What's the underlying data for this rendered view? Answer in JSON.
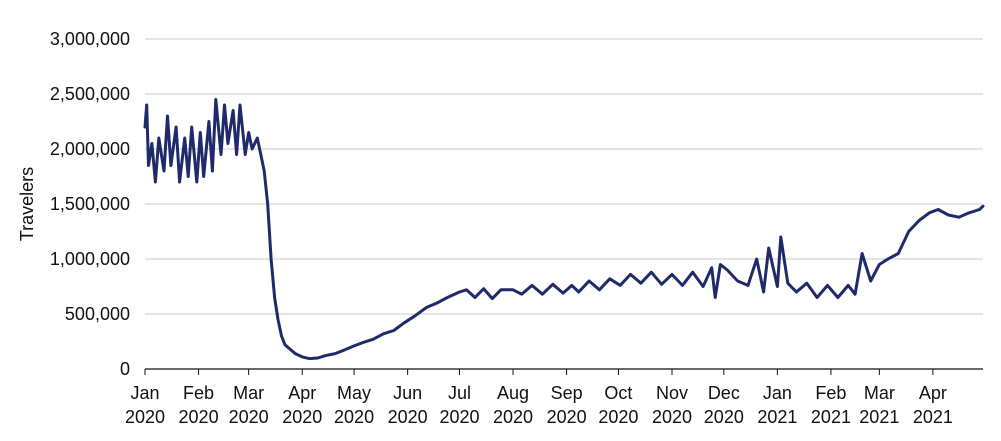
{
  "chart_data": {
    "type": "line",
    "title": "",
    "xlabel": "",
    "ylabel": "Travelers",
    "ylim": [
      0,
      3000000
    ],
    "xlim": [
      "2020-01-01",
      "2021-04-30"
    ],
    "grid": "horizontal",
    "color": "#1f2a6b",
    "y_ticks": [
      {
        "value": 0,
        "label": "0"
      },
      {
        "value": 500000,
        "label": "500,000"
      },
      {
        "value": 1000000,
        "label": "1,000,000"
      },
      {
        "value": 1500000,
        "label": "1,500,000"
      },
      {
        "value": 2000000,
        "label": "2,000,000"
      },
      {
        "value": 2500000,
        "label": "2,500,000"
      },
      {
        "value": 3000000,
        "label": "3,000,000"
      }
    ],
    "x_ticks": [
      {
        "date": "2020-01-01",
        "month": "Jan",
        "year": "2020"
      },
      {
        "date": "2020-02-01",
        "month": "Feb",
        "year": "2020"
      },
      {
        "date": "2020-03-01",
        "month": "Mar",
        "year": "2020"
      },
      {
        "date": "2020-04-01",
        "month": "Apr",
        "year": "2020"
      },
      {
        "date": "2020-05-01",
        "month": "May",
        "year": "2020"
      },
      {
        "date": "2020-06-01",
        "month": "Jun",
        "year": "2020"
      },
      {
        "date": "2020-07-01",
        "month": "Jul",
        "year": "2020"
      },
      {
        "date": "2020-08-01",
        "month": "Aug",
        "year": "2020"
      },
      {
        "date": "2020-09-01",
        "month": "Sep",
        "year": "2020"
      },
      {
        "date": "2020-10-01",
        "month": "Oct",
        "year": "2020"
      },
      {
        "date": "2020-11-01",
        "month": "Nov",
        "year": "2020"
      },
      {
        "date": "2020-12-01",
        "month": "Dec",
        "year": "2020"
      },
      {
        "date": "2021-01-01",
        "month": "Jan",
        "year": "2021"
      },
      {
        "date": "2021-02-01",
        "month": "Feb",
        "year": "2021"
      },
      {
        "date": "2021-03-01",
        "month": "Mar",
        "year": "2021"
      },
      {
        "date": "2021-04-01",
        "month": "Apr",
        "year": "2021"
      }
    ],
    "series": [
      {
        "x": [
          "2020-01-01",
          "2020-01-02",
          "2020-01-03",
          "2020-01-05",
          "2020-01-07",
          "2020-01-09",
          "2020-01-12",
          "2020-01-14",
          "2020-01-16",
          "2020-01-19",
          "2020-01-21",
          "2020-01-24",
          "2020-01-26",
          "2020-01-28",
          "2020-01-31",
          "2020-02-02",
          "2020-02-04",
          "2020-02-07",
          "2020-02-09",
          "2020-02-11",
          "2020-02-14",
          "2020-02-16",
          "2020-02-18",
          "2020-02-21",
          "2020-02-23",
          "2020-02-25",
          "2020-02-28",
          "2020-03-01",
          "2020-03-03",
          "2020-03-06",
          "2020-03-08",
          "2020-03-10",
          "2020-03-12",
          "2020-03-14",
          "2020-03-16",
          "2020-03-18",
          "2020-03-20",
          "2020-03-22",
          "2020-03-25",
          "2020-03-28",
          "2020-04-01",
          "2020-04-05",
          "2020-04-10",
          "2020-04-14",
          "2020-04-20",
          "2020-04-25",
          "2020-05-01",
          "2020-05-06",
          "2020-05-12",
          "2020-05-18",
          "2020-05-24",
          "2020-05-30",
          "2020-06-05",
          "2020-06-12",
          "2020-06-18",
          "2020-06-24",
          "2020-07-01",
          "2020-07-05",
          "2020-07-10",
          "2020-07-15",
          "2020-07-20",
          "2020-07-25",
          "2020-08-01",
          "2020-08-06",
          "2020-08-12",
          "2020-08-18",
          "2020-08-24",
          "2020-08-30",
          "2020-09-04",
          "2020-09-08",
          "2020-09-14",
          "2020-09-20",
          "2020-09-26",
          "2020-10-02",
          "2020-10-08",
          "2020-10-14",
          "2020-10-20",
          "2020-10-26",
          "2020-11-01",
          "2020-11-07",
          "2020-11-13",
          "2020-11-19",
          "2020-11-24",
          "2020-11-26",
          "2020-11-29",
          "2020-12-03",
          "2020-12-09",
          "2020-12-15",
          "2020-12-20",
          "2020-12-24",
          "2020-12-27",
          "2021-01-01",
          "2021-01-03",
          "2021-01-07",
          "2021-01-12",
          "2021-01-18",
          "2021-01-24",
          "2021-01-30",
          "2021-02-05",
          "2021-02-11",
          "2021-02-15",
          "2021-02-19",
          "2021-02-24",
          "2021-03-01",
          "2021-03-06",
          "2021-03-12",
          "2021-03-18",
          "2021-03-24",
          "2021-03-30",
          "2021-04-04",
          "2021-04-10",
          "2021-04-16",
          "2021-04-22",
          "2021-04-28",
          "2021-04-30"
        ],
        "values": [
          2200000,
          2400000,
          1850000,
          2050000,
          1700000,
          2100000,
          1800000,
          2300000,
          1850000,
          2200000,
          1700000,
          2100000,
          1750000,
          2200000,
          1700000,
          2150000,
          1750000,
          2250000,
          1800000,
          2450000,
          1950000,
          2400000,
          2050000,
          2350000,
          1950000,
          2400000,
          1950000,
          2150000,
          2000000,
          2100000,
          1950000,
          1800000,
          1500000,
          1000000,
          650000,
          450000,
          300000,
          220000,
          180000,
          140000,
          110000,
          95000,
          100000,
          120000,
          140000,
          170000,
          210000,
          240000,
          270000,
          320000,
          350000,
          420000,
          480000,
          560000,
          600000,
          650000,
          700000,
          720000,
          650000,
          730000,
          640000,
          720000,
          720000,
          680000,
          760000,
          680000,
          770000,
          690000,
          760000,
          700000,
          800000,
          720000,
          820000,
          760000,
          860000,
          780000,
          880000,
          770000,
          860000,
          760000,
          880000,
          750000,
          920000,
          650000,
          950000,
          900000,
          800000,
          760000,
          1000000,
          700000,
          1100000,
          750000,
          1200000,
          780000,
          700000,
          780000,
          650000,
          760000,
          650000,
          760000,
          680000,
          1050000,
          800000,
          950000,
          1000000,
          1050000,
          1250000,
          1350000,
          1420000,
          1450000,
          1400000,
          1380000,
          1420000,
          1450000,
          1480000
        ]
      }
    ]
  }
}
